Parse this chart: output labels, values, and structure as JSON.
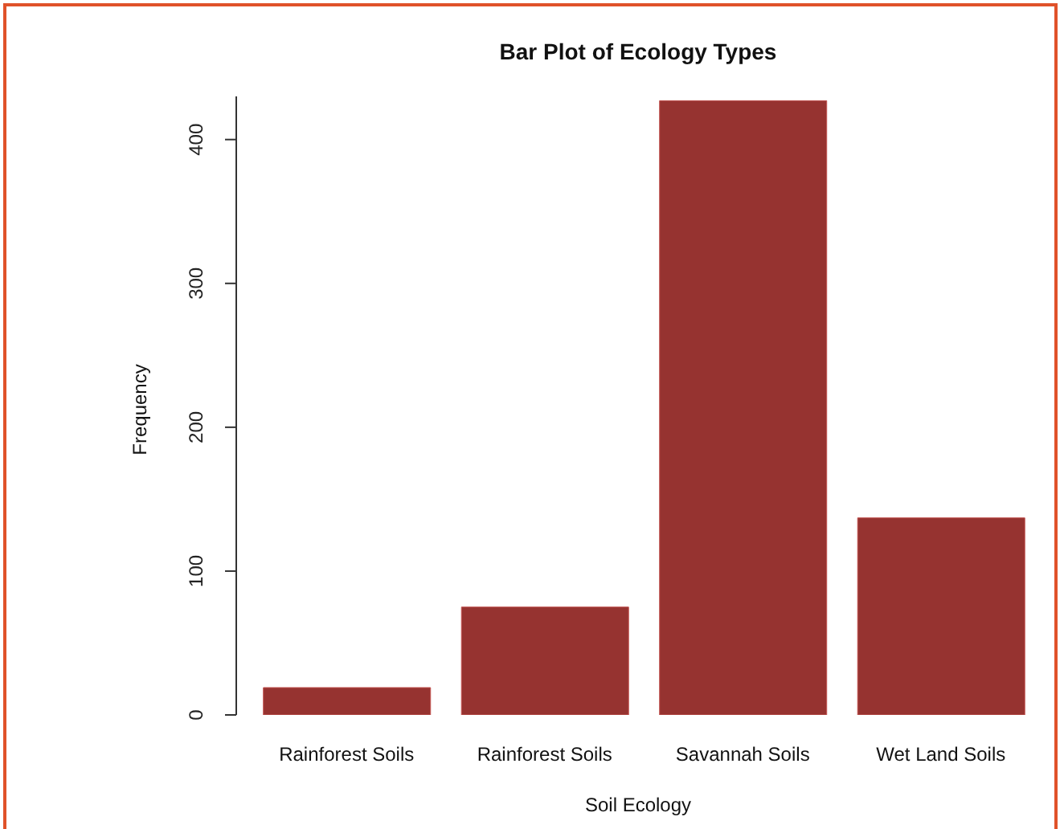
{
  "chart_data": {
    "type": "bar",
    "title": "Bar Plot of Ecology Types",
    "xlabel": "Soil Ecology",
    "ylabel": "Frequency",
    "categories": [
      "Rainforest  Soils",
      "Rainforest Soils",
      "Savannah Soils",
      "Wet Land Soils"
    ],
    "values": [
      19,
      75,
      427,
      137
    ],
    "color": "#963330",
    "ylim": [
      0,
      430
    ],
    "yticks": [
      0,
      100,
      200,
      300,
      400
    ],
    "grid": false,
    "legend": false
  }
}
